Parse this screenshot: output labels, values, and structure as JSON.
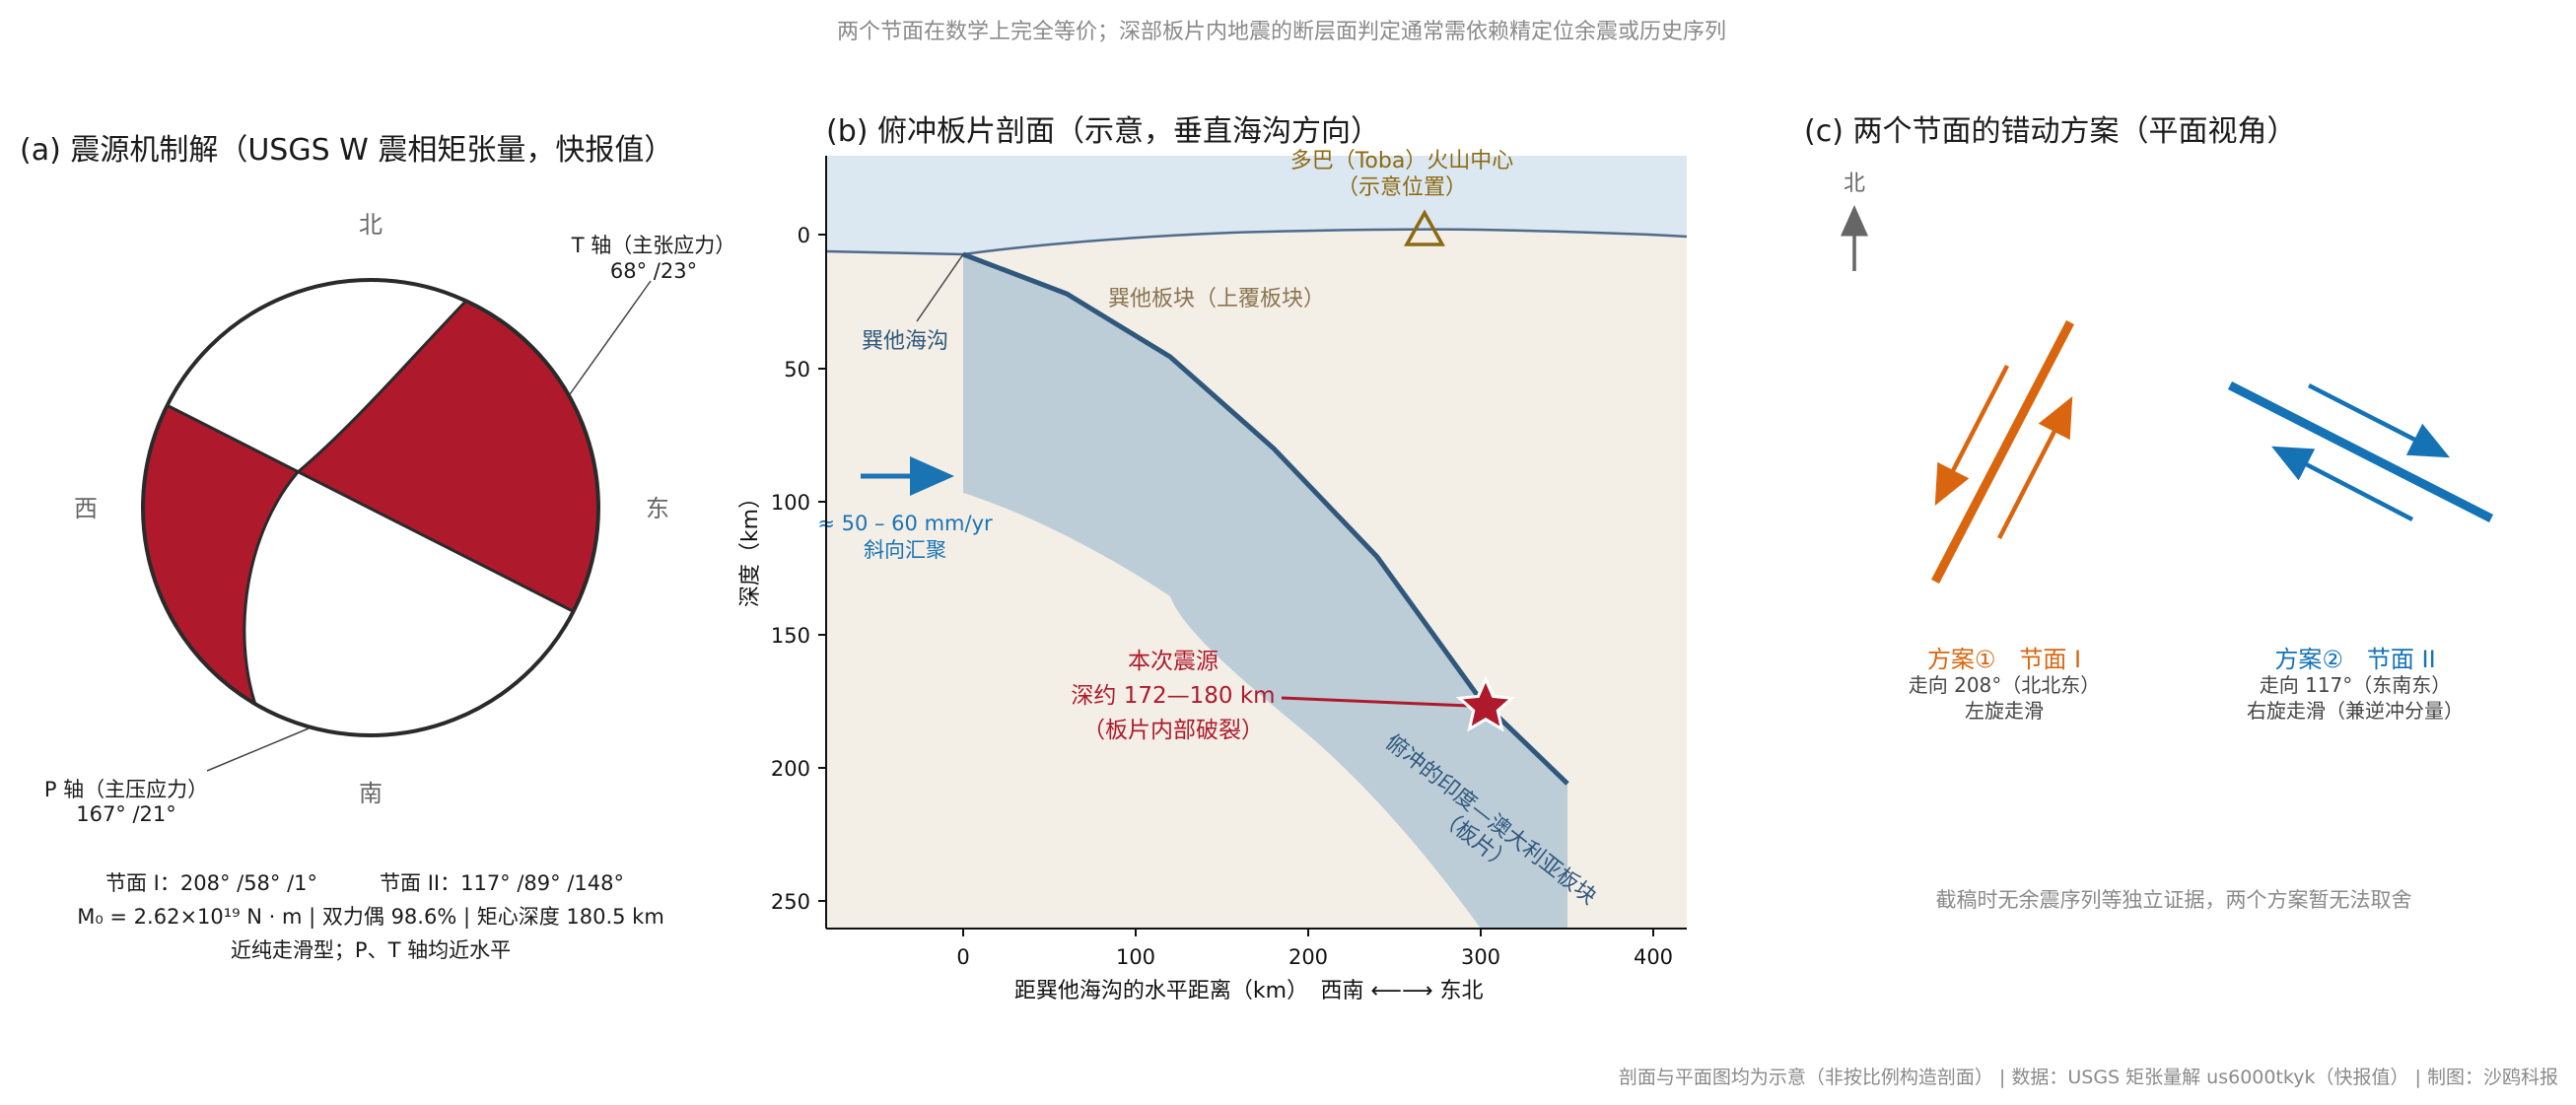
{
  "top_note": "两个节面在数学上完全等价；深部板片内地震的断层面判定通常需依赖精定位余震或历史序列",
  "panel_a": {
    "title": "(a) 震源机制解（USGS W 震相矩张量，快报值）",
    "north": "北",
    "south": "南",
    "west": "西",
    "east": "东",
    "t_axis_label": "T 轴（主张应力）",
    "t_axis_value": "68° /23°",
    "p_axis_label": "P 轴（主压应力）",
    "p_axis_value": "167° /21°",
    "nodal_line": "节面 I：208° /58° /1°　　　节面 II：117° /89° /148°",
    "moment_line": "M₀ = 2.62×10¹⁹ N · m | 双力偶 98.6% | 矩心深度 180.5 km",
    "type_line": "近纯走滑型；P、T 轴均近水平",
    "colors": {
      "compression": "#ae1a2c",
      "outline": "#2a2a2a"
    }
  },
  "panel_b": {
    "title": "(b) 俯冲板片剖面（示意，垂直海沟方向）",
    "volcano_label_1": "多巴（Toba）火山中心",
    "volcano_label_2": "（示意位置）",
    "overriding_label": "巽他板块（上覆板块）",
    "trench_label": "巽他海沟",
    "convergence_1": "≈ 50 – 60 mm/yr",
    "convergence_2": "斜向汇聚",
    "hypo_label_1": "本次震源",
    "hypo_label_2": "深约 172—180 km",
    "hypo_label_3": "（板片内部破裂）",
    "slab_label_1": "俯冲的印度—澳大利亚板块",
    "slab_label_2": "（板片）",
    "xlabel": "距巽他海沟的水平距离（km）",
    "xdir": "西南 ⟵⟶ 东北",
    "ylabel": "深度（km）",
    "x_ticks": [
      "0",
      "100",
      "200",
      "300",
      "400"
    ],
    "y_ticks": [
      "0",
      "50",
      "100",
      "150",
      "200",
      "250"
    ],
    "colors": {
      "ocean": "#dce8f1",
      "land": "#f3efe7",
      "slab": "#bccdd8",
      "slab_top": "#30577c",
      "star": "#ae1a2c",
      "volcano": "#8c6a12",
      "convergence": "#1a73b3"
    }
  },
  "panel_c": {
    "title": "(c) 两个节面的错动方案（平面视角）",
    "north": "北",
    "plan1_title": "方案①　节面 I",
    "plan1_strike": "走向 208°（北北东）",
    "plan1_motion": "左旋走滑",
    "plan2_title": "方案②　节面 II",
    "plan2_strike": "走向 117°（东南东）",
    "plan2_motion": "右旋走滑（兼逆冲分量）",
    "note": "截稿时无余震序列等独立证据，两个方案暂无法取舍",
    "colors": {
      "plan1": "#d9660e",
      "plan2": "#1472b5"
    }
  },
  "footer": "剖面与平面图均为示意（非按比例构造剖面） | 数据：USGS 矩张量解 us6000tkyk（快报值） | 制图：沙鸥科报"
}
